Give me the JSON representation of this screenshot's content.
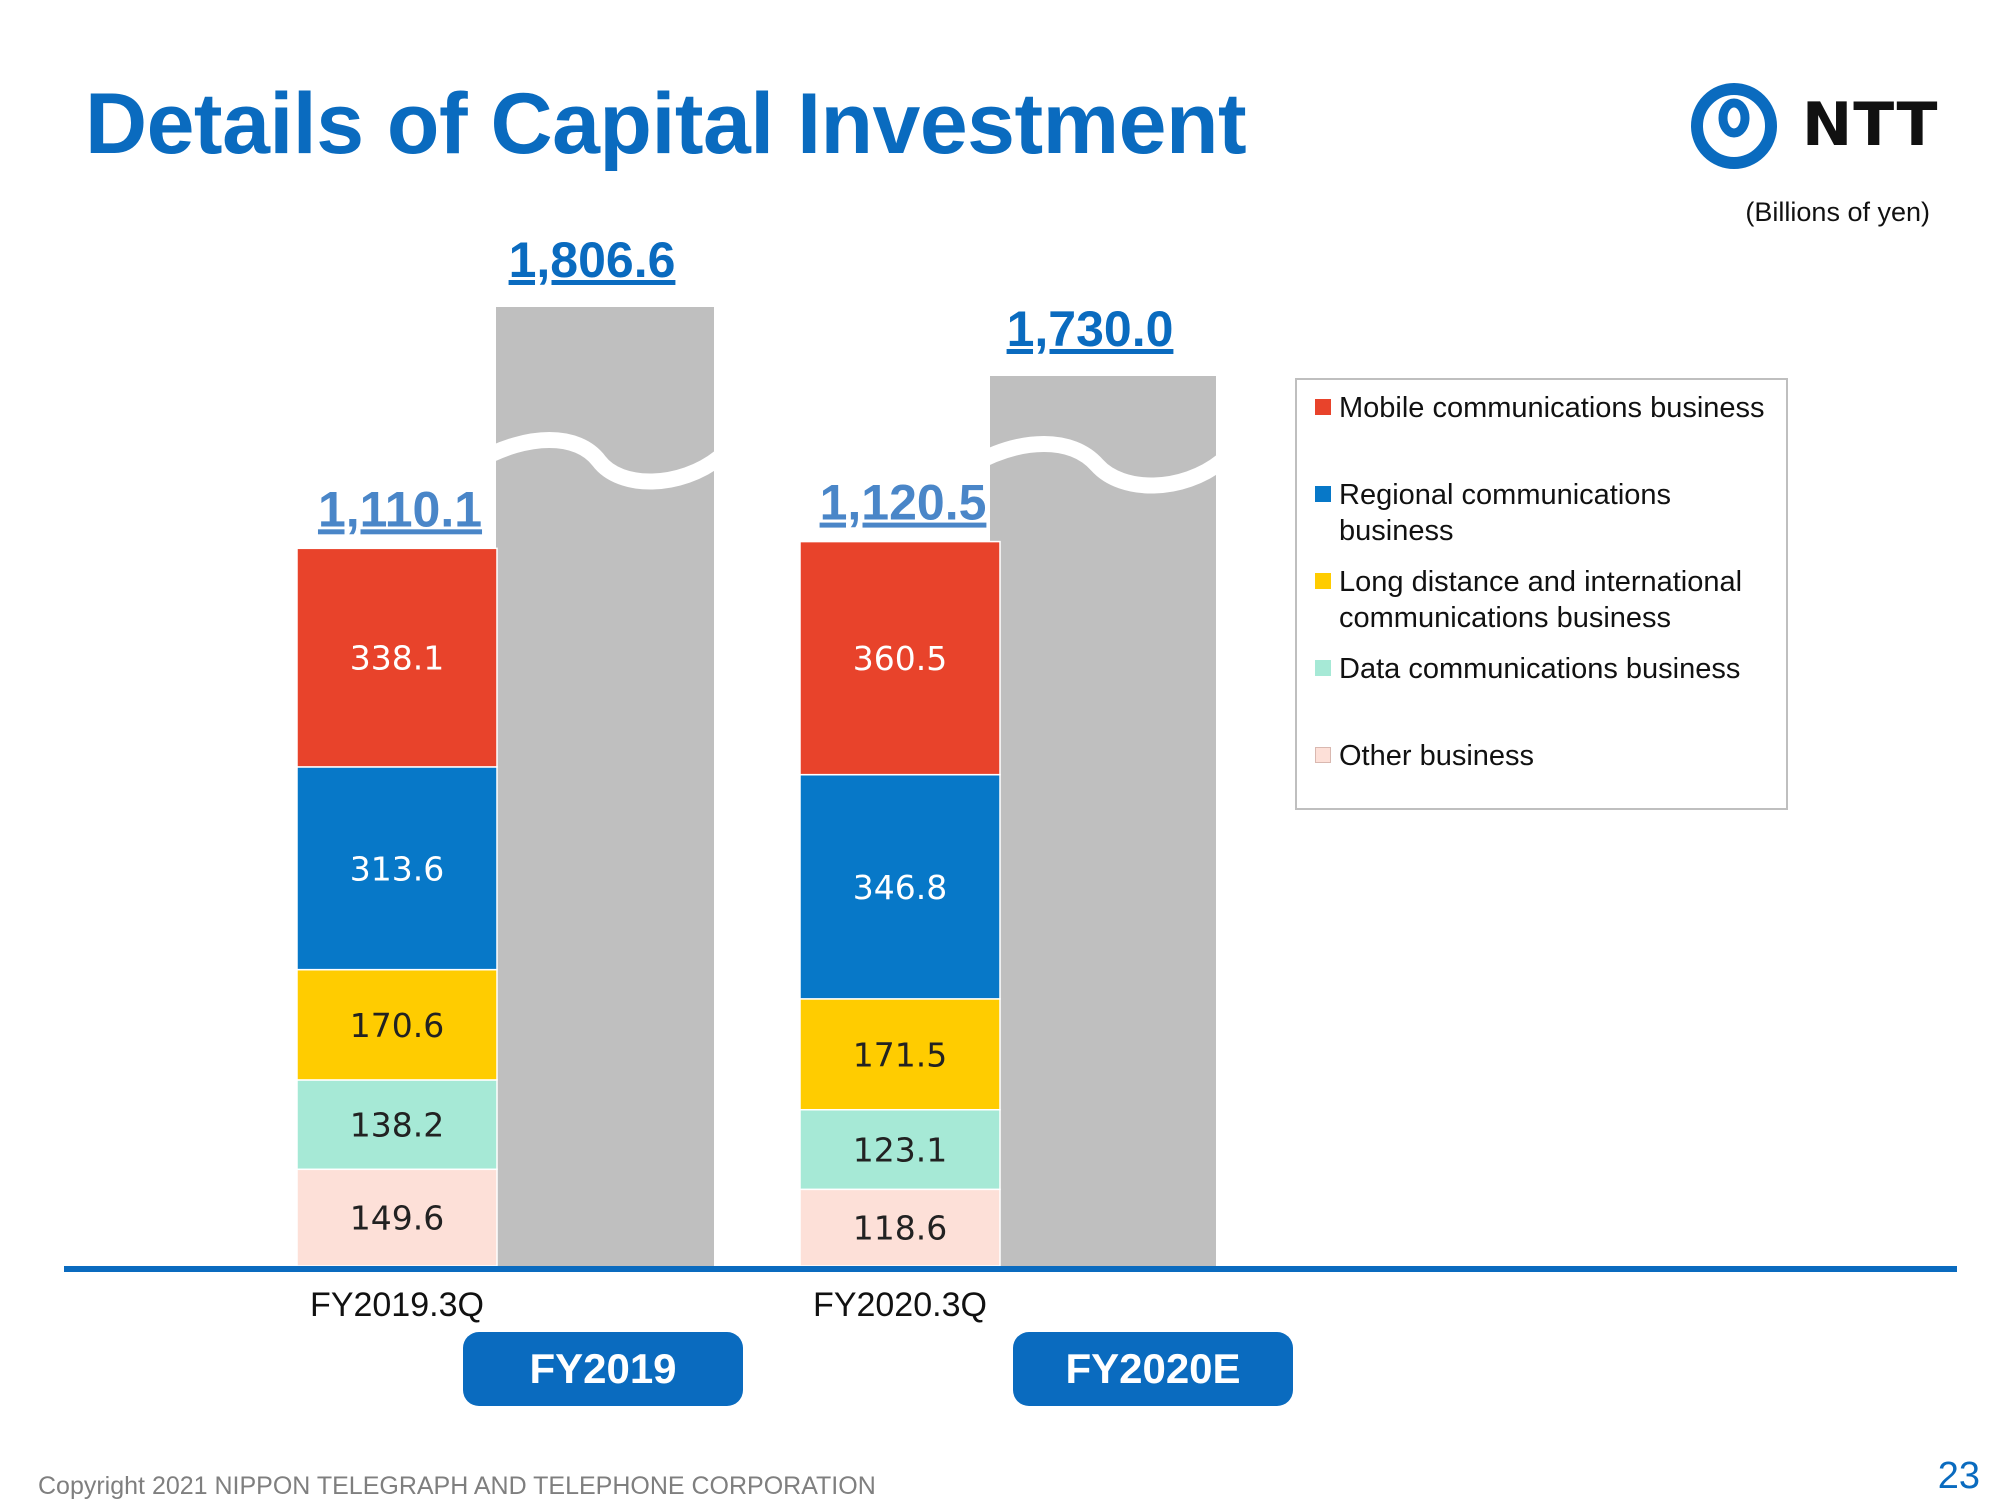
{
  "slide": {
    "title": "Details of Capital Investment",
    "unit_note": "(Billions of yen)",
    "brand": "NTT",
    "copyright": "Copyright 2021 NIPPON TELEGRAPH AND TELEPHONE CORPORATION",
    "page_number": "23",
    "fy_tabs": [
      "FY2019",
      "FY2020E"
    ]
  },
  "colors": {
    "brand_blue": "#0a6bbf",
    "full_year_bar": "#bfbfbf",
    "axis": "#0a6bbf"
  },
  "chart_data": {
    "type": "bar",
    "stacked": true,
    "categories": [
      "FY2019.3Q",
      "FY2020.3Q"
    ],
    "series": [
      {
        "name": "Other business",
        "color": "#fde0d8",
        "values": [
          149.6,
          118.6
        ]
      },
      {
        "name": "Data communications business",
        "color": "#a6e9d6",
        "values": [
          138.2,
          123.1
        ]
      },
      {
        "name": "Long distance and international communications business",
        "color": "#ffcc00",
        "values": [
          170.6,
          171.5
        ]
      },
      {
        "name": "Regional communications business",
        "color": "#0778c8",
        "values": [
          313.6,
          346.8
        ]
      },
      {
        "name": "Mobile communications business",
        "color": "#e8432b",
        "values": [
          338.1,
          360.5
        ]
      }
    ],
    "totals": [
      "1,110.1",
      "1,120.5"
    ],
    "full_year": {
      "labels": [
        "FY2019",
        "FY2020E"
      ],
      "values": [
        1806.6,
        1730.0
      ],
      "value_labels": [
        "1,806.6",
        "1,730.0"
      ],
      "axis_break": true
    },
    "legend": [
      {
        "label": "Mobile communications business",
        "color": "#e8432b"
      },
      {
        "label": "Regional communications business",
        "color": "#0778c8"
      },
      {
        "label": "Long distance and international communications business",
        "color": "#ffcc00"
      },
      {
        "label": "Data communications business",
        "color": "#a6e9d6"
      },
      {
        "label": "Other business",
        "color": "#fde0d8"
      }
    ],
    "legend_position": "right",
    "grid": false
  }
}
